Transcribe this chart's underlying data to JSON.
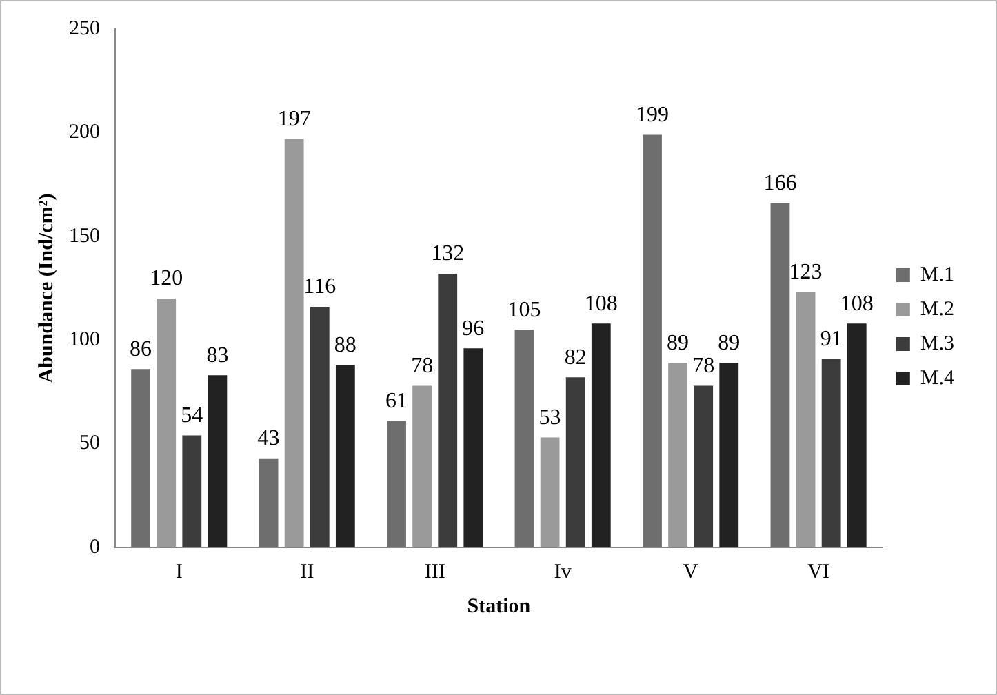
{
  "chart_data": {
    "type": "bar",
    "xlabel": "Station",
    "ylabel": "Abundance (Ind/cm²)",
    "categories": [
      "I",
      "II",
      "III",
      "Iv",
      "V",
      "VI"
    ],
    "series": [
      {
        "name": "M.1",
        "color": "#6e6e6e",
        "values": [
          86,
          43,
          61,
          105,
          199,
          166
        ]
      },
      {
        "name": "M.2",
        "color": "#9a9a9a",
        "values": [
          120,
          197,
          78,
          53,
          89,
          123
        ]
      },
      {
        "name": "M.3",
        "color": "#3c3c3c",
        "values": [
          54,
          116,
          132,
          82,
          78,
          91
        ]
      },
      {
        "name": "M.4",
        "color": "#222222",
        "values": [
          83,
          88,
          96,
          108,
          89,
          108
        ]
      }
    ],
    "ylim": [
      0,
      250
    ],
    "yticks": [
      0,
      50,
      100,
      150,
      200,
      250
    ],
    "grid": false,
    "legend": "right",
    "data_labels": true
  }
}
